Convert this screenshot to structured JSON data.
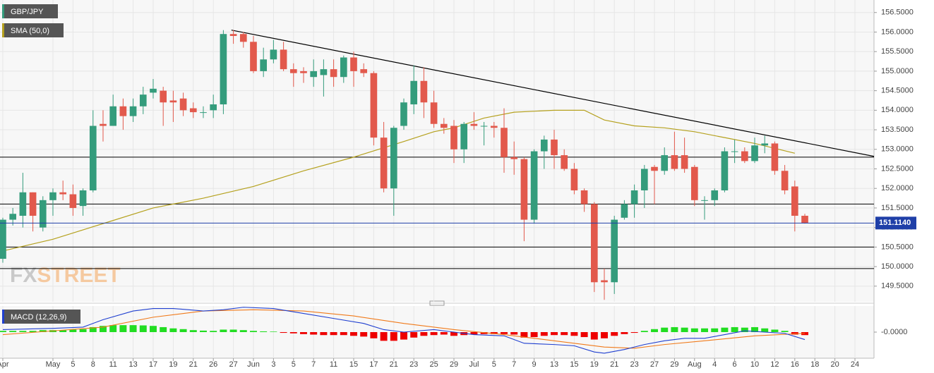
{
  "chart_data": {
    "type": "candlestick",
    "title": "GBP/JPY",
    "xlim": [
      -0.28,
      86.9
    ],
    "xticks": [
      {
        "value": 0,
        "label": "Apr"
      },
      {
        "value": 5,
        "label": "May"
      },
      {
        "value": 7,
        "label": "5"
      },
      {
        "value": 9,
        "label": "8"
      },
      {
        "value": 11,
        "label": "11"
      },
      {
        "value": 13,
        "label": "13"
      },
      {
        "value": 15,
        "label": "17"
      },
      {
        "value": 17,
        "label": "19"
      },
      {
        "value": 19,
        "label": "21"
      },
      {
        "value": 21,
        "label": "26"
      },
      {
        "value": 23,
        "label": "27"
      },
      {
        "value": 25,
        "label": "Jun"
      },
      {
        "value": 27,
        "label": "3"
      },
      {
        "value": 29,
        "label": "5"
      },
      {
        "value": 31,
        "label": "7"
      },
      {
        "value": 33,
        "label": "11"
      },
      {
        "value": 35,
        "label": "15"
      },
      {
        "value": 37,
        "label": "17"
      },
      {
        "value": 39,
        "label": "21"
      },
      {
        "value": 41,
        "label": "23"
      },
      {
        "value": 43,
        "label": "25"
      },
      {
        "value": 45,
        "label": "29"
      },
      {
        "value": 47,
        "label": "Jul"
      },
      {
        "value": 49,
        "label": "5"
      },
      {
        "value": 51,
        "label": "7"
      },
      {
        "value": 53,
        "label": "9"
      },
      {
        "value": 55,
        "label": "13"
      },
      {
        "value": 57,
        "label": "15"
      },
      {
        "value": 59,
        "label": "19"
      },
      {
        "value": 61,
        "label": "21"
      },
      {
        "value": 63,
        "label": "23"
      },
      {
        "value": 65,
        "label": "27"
      },
      {
        "value": 67,
        "label": "29"
      },
      {
        "value": 69,
        "label": "Aug"
      },
      {
        "value": 71,
        "label": "4"
      },
      {
        "value": 73,
        "label": "6"
      },
      {
        "value": 75,
        "label": "10"
      },
      {
        "value": 77,
        "label": "12"
      },
      {
        "value": 79,
        "label": "16"
      },
      {
        "value": 81,
        "label": "18"
      },
      {
        "value": 83,
        "label": "20"
      },
      {
        "value": 85,
        "label": "24"
      }
    ],
    "ylim": [
      149.1,
      156.82
    ],
    "yticks": [
      {
        "value": 149.5,
        "label": "149.5000"
      },
      {
        "value": 150,
        "label": "150.0000"
      },
      {
        "value": 150.5,
        "label": "150.5000"
      },
      {
        "value": 151,
        "label": "151.0000"
      },
      {
        "value": 151.5,
        "label": "151.5000"
      },
      {
        "value": 152,
        "label": "152.0000"
      },
      {
        "value": 152.5,
        "label": "152.5000"
      },
      {
        "value": 153,
        "label": "153.0000"
      },
      {
        "value": 153.5,
        "label": "153.5000"
      },
      {
        "value": 154,
        "label": "154.0000"
      },
      {
        "value": 154.5,
        "label": "154.5000"
      },
      {
        "value": 155,
        "label": "155.0000"
      },
      {
        "value": 155.5,
        "label": "155.5000"
      },
      {
        "value": 156,
        "label": "156.0000"
      },
      {
        "value": 156.5,
        "label": "156.5000"
      }
    ],
    "grid": true,
    "up_color": "#349c7c",
    "down_color": "#e2594c",
    "open": [
      150.2,
      151.2,
      151.3,
      151.9,
      151.0,
      151.7,
      151.9,
      151.85,
      151.55,
      151.95,
      153.65,
      153.6,
      154.1,
      153.85,
      154.1,
      154.45,
      154.5,
      154.25,
      154.3,
      154.05,
      153.95,
      154.0,
      154.15,
      155.95,
      155.95,
      155.75,
      155.0,
      155.3,
      155.55,
      155.05,
      155.0,
      154.85,
      154.9,
      155.05,
      154.85,
      155.35,
      155.05,
      154.95,
      153.3,
      152.0,
      153.6,
      154.15,
      154.75,
      154.2,
      153.65,
      153.6,
      153.0,
      153.65,
      153.6,
      153.6,
      153.55,
      152.8,
      152.75,
      151.2,
      152.95,
      153.25,
      152.85,
      152.5,
      151.95,
      151.6,
      149.65,
      149.6,
      151.25,
      151.6,
      151.95,
      152.55,
      152.45,
      152.85,
      152.85,
      152.55,
      151.7,
      151.7,
      151.95,
      152.95,
      152.95,
      152.7,
      153.1,
      153.15,
      152.45,
      152.05,
      151.3
    ],
    "high": [
      151.25,
      151.5,
      152.4,
      151.9,
      151.8,
      152.0,
      152.2,
      152.1,
      152.0,
      154.0,
      154.0,
      154.4,
      154.3,
      154.3,
      154.6,
      154.8,
      154.6,
      154.5,
      154.45,
      154.2,
      154.1,
      154.4,
      156.05,
      156.05,
      156.0,
      155.9,
      155.6,
      155.8,
      155.75,
      155.2,
      155.1,
      155.3,
      155.3,
      155.3,
      155.4,
      155.5,
      155.2,
      155.0,
      153.7,
      153.6,
      154.3,
      155.15,
      155.1,
      154.5,
      153.8,
      153.75,
      153.7,
      153.95,
      153.7,
      153.7,
      154.05,
      153.2,
      152.8,
      153.0,
      153.35,
      153.5,
      153.0,
      152.65,
      152.0,
      151.65,
      149.95,
      151.3,
      151.7,
      152.1,
      152.6,
      152.6,
      153.05,
      153.45,
      153.3,
      152.6,
      151.8,
      152.0,
      153.05,
      153.25,
      153.05,
      153.3,
      153.35,
      153.2,
      152.6,
      152.2,
      151.35
    ],
    "low": [
      150.1,
      151.05,
      151.0,
      150.9,
      150.9,
      151.3,
      151.7,
      151.3,
      151.3,
      151.9,
      153.2,
      153.6,
      153.5,
      153.7,
      153.9,
      154.3,
      153.6,
      153.7,
      153.85,
      153.8,
      153.8,
      153.8,
      153.9,
      155.7,
      155.6,
      154.95,
      154.85,
      155.2,
      155.0,
      154.6,
      154.7,
      154.6,
      154.35,
      154.6,
      154.7,
      154.6,
      154.85,
      153.1,
      151.9,
      151.3,
      153.5,
      153.9,
      153.8,
      153.55,
      153.4,
      152.65,
      152.65,
      153.5,
      153.1,
      153.3,
      152.4,
      152.35,
      150.65,
      151.1,
      152.5,
      152.5,
      152.45,
      151.85,
      151.4,
      149.35,
      149.15,
      149.3,
      151.2,
      151.25,
      151.5,
      151.6,
      152.35,
      152.45,
      152.4,
      151.55,
      151.2,
      151.55,
      151.9,
      152.65,
      152.65,
      152.65,
      152.9,
      152.35,
      151.85,
      150.9,
      151.1
    ],
    "close": [
      151.2,
      151.35,
      151.9,
      151.3,
      151.7,
      151.9,
      151.85,
      151.5,
      151.95,
      153.6,
      153.6,
      154.1,
      153.85,
      154.1,
      154.4,
      154.55,
      154.2,
      154.2,
      154.0,
      153.95,
      153.95,
      154.15,
      155.95,
      155.9,
      155.75,
      155.0,
      155.3,
      155.55,
      155.05,
      154.95,
      154.95,
      155.0,
      155.05,
      154.85,
      155.35,
      155.0,
      154.95,
      153.3,
      152.0,
      153.55,
      154.2,
      154.75,
      154.2,
      153.65,
      153.55,
      153.0,
      153.65,
      153.6,
      153.6,
      153.55,
      152.8,
      152.75,
      151.2,
      152.95,
      153.25,
      152.85,
      152.5,
      151.95,
      151.6,
      149.6,
      149.6,
      151.2,
      151.6,
      151.95,
      152.5,
      152.45,
      152.85,
      152.5,
      152.5,
      151.7,
      151.7,
      151.95,
      152.95,
      152.95,
      152.7,
      153.1,
      153.15,
      152.45,
      151.95,
      151.3,
      151.11
    ],
    "sma": {
      "name": "SMA (50,0)",
      "color": "#b5a11e",
      "x": [
        0,
        5,
        10,
        15,
        20,
        25,
        30,
        35,
        40,
        43,
        45,
        48,
        51,
        55,
        58,
        60,
        63,
        66,
        69,
        72,
        75,
        79
      ],
      "values": [
        150.4,
        150.7,
        151.1,
        151.5,
        151.75,
        152.05,
        152.45,
        152.8,
        153.2,
        153.45,
        153.55,
        153.8,
        153.95,
        154.0,
        154.0,
        153.75,
        153.6,
        153.55,
        153.45,
        153.3,
        153.15,
        152.9
      ]
    },
    "trendline": {
      "color": "#000000",
      "x": [
        22.8,
        86.9
      ],
      "values": [
        156.05,
        152.82
      ]
    },
    "levels": [
      152.8,
      151.6,
      150.5,
      149.95
    ],
    "last_price": {
      "value": 151.114,
      "label": "151.1140",
      "color": "#1f3fa8"
    },
    "watermark": [
      "FX",
      "STREET"
    ],
    "macd": {
      "name": "MACD (12,26,9)",
      "ylim": [
        -1.05,
        1.05
      ],
      "yticks": [
        {
          "value": 0,
          "label": "-0.0000"
        }
      ],
      "histogram": [
        0.05,
        0.05,
        0.05,
        0.05,
        0.08,
        0.08,
        0.08,
        0.1,
        0.12,
        0.2,
        0.25,
        0.28,
        0.28,
        0.28,
        0.27,
        0.25,
        0.2,
        0.15,
        0.12,
        0.08,
        0.06,
        0.05,
        0.1,
        0.1,
        0.08,
        0.05,
        0.03,
        0.02,
        -0.03,
        -0.05,
        -0.08,
        -0.1,
        -0.12,
        -0.12,
        -0.12,
        -0.15,
        -0.18,
        -0.25,
        -0.35,
        -0.35,
        -0.3,
        -0.22,
        -0.15,
        -0.12,
        -0.1,
        -0.15,
        -0.12,
        -0.1,
        -0.08,
        -0.08,
        -0.08,
        -0.1,
        -0.22,
        -0.2,
        -0.15,
        -0.12,
        -0.12,
        -0.15,
        -0.2,
        -0.3,
        -0.25,
        -0.15,
        -0.08,
        -0.03,
        0.05,
        0.12,
        0.18,
        0.2,
        0.18,
        0.15,
        0.15,
        0.15,
        0.18,
        0.2,
        0.18,
        0.2,
        0.15,
        0.1,
        0.05,
        -0.1,
        -0.12
      ],
      "pos_color": "#22dd22",
      "neg_color": "#ee0000",
      "macd_line": {
        "color": "#1f3fd0",
        "x": [
          0,
          5,
          8,
          10,
          13,
          15,
          17,
          20,
          22,
          24,
          27,
          30,
          33,
          36,
          38,
          40,
          43,
          45,
          47,
          50,
          52,
          55,
          57,
          59,
          60,
          62,
          64,
          66,
          68,
          70,
          72,
          74,
          76,
          78,
          80
        ],
        "values": [
          0.1,
          0.15,
          0.2,
          0.5,
          0.85,
          0.95,
          0.95,
          0.85,
          0.9,
          1.0,
          0.95,
          0.75,
          0.55,
          0.35,
          0.1,
          0.0,
          0.1,
          0.0,
          -0.1,
          -0.15,
          -0.45,
          -0.5,
          -0.55,
          -0.8,
          -0.85,
          -0.7,
          -0.5,
          -0.35,
          -0.25,
          -0.25,
          -0.1,
          0.05,
          0.0,
          -0.05,
          -0.3
        ]
      },
      "signal_line": {
        "color": "#f07a1a",
        "x": [
          0,
          5,
          10,
          15,
          20,
          25,
          30,
          35,
          40,
          45,
          50,
          55,
          60,
          63,
          66,
          70,
          75,
          80
        ],
        "values": [
          -0.1,
          0.05,
          0.2,
          0.6,
          0.85,
          0.9,
          0.85,
          0.65,
          0.35,
          0.1,
          -0.1,
          -0.35,
          -0.6,
          -0.65,
          -0.5,
          -0.35,
          -0.15,
          -0.05
        ]
      }
    }
  }
}
